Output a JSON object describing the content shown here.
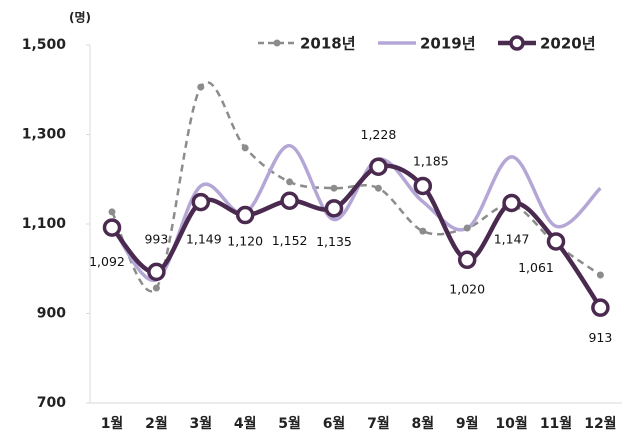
{
  "chart_data": {
    "type": "line",
    "unit": "(명)",
    "categories": [
      "1월",
      "2월",
      "3월",
      "4월",
      "5월",
      "6월",
      "7월",
      "8월",
      "9월",
      "10월",
      "11월",
      "12월"
    ],
    "series": [
      {
        "name": "2018년",
        "color": "#8c8c8c",
        "values": [
          1127,
          957,
          1406,
          1270,
          1194,
          1180,
          1180,
          1084,
          1091,
          1142,
          1055,
          986
        ]
      },
      {
        "name": "2019년",
        "color": "#b4a7d6",
        "values": [
          1095,
          975,
          1185,
          1125,
          1275,
          1110,
          1245,
          1150,
          1090,
          1250,
          1095,
          1180
        ]
      },
      {
        "name": "2020년",
        "color": "#4a2a4f",
        "values": [
          1092,
          993,
          1149,
          1120,
          1152,
          1135,
          1228,
          1185,
          1020,
          1147,
          1061,
          913
        ],
        "value_labels": [
          "1,092",
          "993",
          "1,149",
          "1,120",
          "1,152",
          "1,135",
          "1,228",
          "1,185",
          "1,020",
          "1,147",
          "1,061",
          "913"
        ]
      }
    ],
    "ylim": [
      700,
      1500
    ],
    "yticks": [
      {
        "value": 700,
        "label": "700"
      },
      {
        "value": 900,
        "label": "900"
      },
      {
        "value": 1100,
        "label": "1,100"
      },
      {
        "value": 1300,
        "label": "1,300"
      },
      {
        "value": 1500,
        "label": "1,500"
      }
    ],
    "legend": "top-right"
  }
}
